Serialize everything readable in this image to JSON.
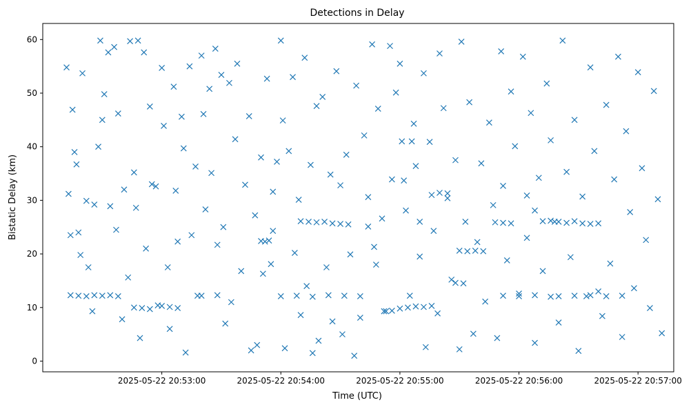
{
  "chart_data": {
    "type": "scatter",
    "title": "Detections in Delay",
    "xlabel": "Time (UTC)",
    "ylabel": "Bistatic Delay (km)",
    "x_unit": "datetime",
    "x_start": "2025-05-22 20:52:12",
    "x_end": "2025-05-22 20:57:12",
    "xlim": [
      "2025-05-22 20:52:00",
      "2025-05-22 20:57:18"
    ],
    "ylim": [
      -2,
      63
    ],
    "xticks": [
      "2025-05-22 20:53:00",
      "2025-05-22 20:54:00",
      "2025-05-22 20:55:00",
      "2025-05-22 20:56:00",
      "2025-05-22 20:57:00"
    ],
    "yticks": [
      0,
      10,
      20,
      30,
      40,
      50,
      60
    ],
    "marker": "x",
    "color": "#1f77b4",
    "grid": false,
    "legend": "none",
    "points": [
      [
        "20:52:12",
        54.8
      ],
      [
        "20:52:13",
        31.2
      ],
      [
        "20:52:14",
        23.5
      ],
      [
        "20:52:15",
        46.9
      ],
      [
        "20:52:16",
        39.0
      ],
      [
        "20:52:17",
        36.7
      ],
      [
        "20:52:18",
        24.0
      ],
      [
        "20:52:19",
        19.8
      ],
      [
        "20:52:20",
        53.7
      ],
      [
        "20:52:22",
        29.9
      ],
      [
        "20:52:23",
        17.5
      ],
      [
        "20:52:25",
        9.3
      ],
      [
        "20:52:26",
        29.2
      ],
      [
        "20:52:28",
        40.0
      ],
      [
        "20:52:29",
        59.8
      ],
      [
        "20:52:30",
        45.0
      ],
      [
        "20:52:31",
        49.8
      ],
      [
        "20:52:33",
        57.6
      ],
      [
        "20:52:34",
        28.9
      ],
      [
        "20:52:36",
        58.6
      ],
      [
        "20:52:37",
        24.5
      ],
      [
        "20:52:38",
        46.2
      ],
      [
        "20:52:40",
        7.8
      ],
      [
        "20:52:41",
        32.0
      ],
      [
        "20:52:43",
        15.6
      ],
      [
        "20:52:44",
        59.7
      ],
      [
        "20:52:46",
        35.2
      ],
      [
        "20:52:47",
        28.6
      ],
      [
        "20:52:48",
        59.8
      ],
      [
        "20:52:49",
        4.3
      ],
      [
        "20:52:51",
        57.6
      ],
      [
        "20:52:52",
        21.0
      ],
      [
        "20:52:54",
        47.5
      ],
      [
        "20:52:55",
        33.0
      ],
      [
        "20:52:57",
        32.6
      ],
      [
        "20:52:58",
        10.4
      ],
      [
        "20:53:00",
        54.7
      ],
      [
        "20:53:01",
        43.9
      ],
      [
        "20:53:03",
        17.5
      ],
      [
        "20:53:04",
        6.0
      ],
      [
        "20:53:06",
        51.2
      ],
      [
        "20:53:07",
        31.8
      ],
      [
        "20:53:08",
        22.3
      ],
      [
        "20:53:10",
        45.6
      ],
      [
        "20:53:11",
        39.7
      ],
      [
        "20:53:12",
        1.6
      ],
      [
        "20:53:14",
        55.0
      ],
      [
        "20:53:15",
        23.5
      ],
      [
        "20:53:17",
        36.3
      ],
      [
        "20:53:18",
        12.2
      ],
      [
        "20:53:20",
        57.0
      ],
      [
        "20:53:21",
        46.1
      ],
      [
        "20:53:22",
        28.3
      ],
      [
        "20:53:24",
        50.8
      ],
      [
        "20:53:25",
        35.1
      ],
      [
        "20:53:27",
        58.3
      ],
      [
        "20:53:28",
        21.7
      ],
      [
        "20:53:30",
        53.4
      ],
      [
        "20:53:31",
        25.0
      ],
      [
        "20:53:32",
        7.0
      ],
      [
        "20:53:34",
        51.9
      ],
      [
        "20:53:35",
        11.0
      ],
      [
        "20:53:37",
        41.4
      ],
      [
        "20:53:38",
        55.5
      ],
      [
        "20:53:40",
        16.8
      ],
      [
        "20:53:42",
        32.9
      ],
      [
        "20:53:44",
        45.7
      ],
      [
        "20:53:45",
        2.0
      ],
      [
        "20:53:47",
        27.2
      ],
      [
        "20:53:48",
        3.0
      ],
      [
        "20:53:50",
        38.0
      ],
      [
        "20:53:51",
        16.3
      ],
      [
        "20:53:53",
        52.7
      ],
      [
        "20:53:55",
        18.1
      ],
      [
        "20:53:56",
        31.6
      ],
      [
        "20:53:58",
        37.2
      ],
      [
        "20:54:00",
        59.8
      ],
      [
        "20:54:01",
        44.9
      ],
      [
        "20:54:02",
        2.4
      ],
      [
        "20:54:04",
        39.2
      ],
      [
        "20:54:06",
        53.0
      ],
      [
        "20:54:07",
        20.2
      ],
      [
        "20:54:09",
        30.1
      ],
      [
        "20:54:10",
        8.6
      ],
      [
        "20:54:12",
        56.6
      ],
      [
        "20:54:13",
        14.0
      ],
      [
        "20:54:15",
        36.6
      ],
      [
        "20:54:16",
        1.5
      ],
      [
        "20:54:18",
        47.6
      ],
      [
        "20:54:19",
        3.8
      ],
      [
        "20:54:21",
        49.3
      ],
      [
        "20:54:23",
        17.5
      ],
      [
        "20:54:25",
        34.8
      ],
      [
        "20:54:26",
        7.4
      ],
      [
        "20:54:28",
        54.1
      ],
      [
        "20:54:30",
        32.8
      ],
      [
        "20:54:31",
        5.0
      ],
      [
        "20:54:33",
        38.5
      ],
      [
        "20:54:35",
        19.9
      ],
      [
        "20:54:37",
        1.0
      ],
      [
        "20:54:38",
        51.4
      ],
      [
        "20:54:40",
        8.1
      ],
      [
        "20:54:42",
        42.1
      ],
      [
        "20:54:44",
        30.6
      ],
      [
        "20:54:46",
        59.1
      ],
      [
        "20:54:47",
        21.3
      ],
      [
        "20:54:49",
        47.1
      ],
      [
        "20:54:51",
        26.6
      ],
      [
        "20:54:53",
        9.3
      ],
      [
        "20:54:55",
        58.8
      ],
      [
        "20:54:56",
        33.9
      ],
      [
        "20:54:58",
        50.1
      ],
      [
        "20:55:00",
        55.5
      ],
      [
        "20:55:01",
        41.0
      ],
      [
        "20:55:03",
        28.1
      ],
      [
        "20:55:05",
        12.2
      ],
      [
        "20:55:07",
        44.3
      ],
      [
        "20:55:08",
        36.4
      ],
      [
        "20:55:10",
        19.5
      ],
      [
        "20:55:12",
        53.7
      ],
      [
        "20:55:13",
        2.6
      ],
      [
        "20:55:15",
        40.9
      ],
      [
        "20:55:17",
        24.3
      ],
      [
        "20:55:19",
        8.9
      ],
      [
        "20:55:20",
        57.4
      ],
      [
        "20:55:22",
        47.2
      ],
      [
        "20:55:24",
        31.3
      ],
      [
        "20:55:26",
        15.2
      ],
      [
        "20:55:28",
        37.5
      ],
      [
        "20:55:30",
        2.2
      ],
      [
        "20:55:31",
        59.6
      ],
      [
        "20:55:33",
        26.0
      ],
      [
        "20:55:35",
        48.3
      ],
      [
        "20:55:37",
        5.1
      ],
      [
        "20:55:39",
        22.2
      ],
      [
        "20:55:41",
        36.9
      ],
      [
        "20:55:43",
        11.1
      ],
      [
        "20:55:45",
        44.5
      ],
      [
        "20:55:47",
        29.1
      ],
      [
        "20:55:49",
        4.3
      ],
      [
        "20:55:51",
        57.8
      ],
      [
        "20:55:52",
        32.7
      ],
      [
        "20:55:54",
        18.8
      ],
      [
        "20:55:56",
        50.3
      ],
      [
        "20:55:58",
        40.1
      ],
      [
        "20:56:00",
        12.6
      ],
      [
        "20:56:02",
        56.8
      ],
      [
        "20:56:04",
        23.0
      ],
      [
        "20:56:06",
        46.3
      ],
      [
        "20:56:08",
        3.4
      ],
      [
        "20:56:10",
        34.2
      ],
      [
        "20:56:12",
        16.8
      ],
      [
        "20:56:14",
        51.8
      ],
      [
        "20:56:16",
        41.2
      ],
      [
        "20:56:18",
        26.0
      ],
      [
        "20:56:20",
        7.2
      ],
      [
        "20:56:22",
        59.8
      ],
      [
        "20:56:24",
        35.3
      ],
      [
        "20:56:26",
        19.4
      ],
      [
        "20:56:28",
        45.0
      ],
      [
        "20:56:30",
        1.9
      ],
      [
        "20:56:32",
        30.7
      ],
      [
        "20:56:34",
        12.1
      ],
      [
        "20:56:36",
        54.8
      ],
      [
        "20:56:38",
        39.2
      ],
      [
        "20:56:40",
        25.7
      ],
      [
        "20:56:42",
        8.4
      ],
      [
        "20:56:44",
        47.8
      ],
      [
        "20:56:46",
        18.2
      ],
      [
        "20:56:48",
        33.9
      ],
      [
        "20:56:50",
        56.8
      ],
      [
        "20:56:52",
        4.5
      ],
      [
        "20:56:54",
        42.9
      ],
      [
        "20:56:56",
        27.8
      ],
      [
        "20:56:58",
        13.6
      ],
      [
        "20:57:00",
        53.9
      ],
      [
        "20:57:02",
        36.0
      ],
      [
        "20:57:04",
        22.6
      ],
      [
        "20:57:06",
        9.9
      ],
      [
        "20:57:08",
        50.4
      ],
      [
        "20:57:10",
        30.2
      ],
      [
        "20:57:12",
        5.2
      ],
      [
        "20:52:14",
        12.3
      ],
      [
        "20:52:18",
        12.2
      ],
      [
        "20:52:22",
        12.1
      ],
      [
        "20:52:26",
        12.3
      ],
      [
        "20:52:30",
        12.2
      ],
      [
        "20:52:34",
        12.3
      ],
      [
        "20:52:38",
        12.1
      ],
      [
        "20:53:20",
        12.2
      ],
      [
        "20:53:28",
        12.3
      ],
      [
        "20:54:00",
        12.1
      ],
      [
        "20:54:08",
        12.2
      ],
      [
        "20:54:16",
        12.0
      ],
      [
        "20:54:24",
        12.3
      ],
      [
        "20:54:32",
        12.2
      ],
      [
        "20:54:40",
        12.1
      ],
      [
        "20:55:52",
        12.2
      ],
      [
        "20:56:00",
        12.1
      ],
      [
        "20:56:08",
        12.3
      ],
      [
        "20:56:16",
        12.0
      ],
      [
        "20:56:20",
        12.1
      ],
      [
        "20:56:28",
        12.2
      ],
      [
        "20:56:36",
        12.3
      ],
      [
        "20:56:44",
        12.1
      ],
      [
        "20:56:52",
        12.2
      ],
      [
        "20:52:46",
        10.0
      ],
      [
        "20:52:50",
        9.9
      ],
      [
        "20:52:54",
        9.7
      ],
      [
        "20:53:00",
        10.3
      ],
      [
        "20:53:04",
        10.1
      ],
      [
        "20:53:08",
        9.9
      ],
      [
        "20:55:00",
        9.8
      ],
      [
        "20:55:04",
        10.0
      ],
      [
        "20:55:08",
        10.2
      ],
      [
        "20:55:12",
        10.1
      ],
      [
        "20:55:16",
        10.3
      ],
      [
        "20:54:52",
        9.3
      ],
      [
        "20:54:56",
        9.4
      ],
      [
        "20:53:50",
        22.4
      ],
      [
        "20:53:52",
        22.3
      ],
      [
        "20:53:54",
        22.5
      ],
      [
        "20:53:56",
        24.3
      ],
      [
        "20:54:10",
        26.1
      ],
      [
        "20:54:14",
        26.0
      ],
      [
        "20:54:18",
        25.9
      ],
      [
        "20:54:22",
        26.0
      ],
      [
        "20:54:26",
        25.7
      ],
      [
        "20:54:30",
        25.6
      ],
      [
        "20:54:34",
        25.5
      ],
      [
        "20:56:12",
        26.1
      ],
      [
        "20:56:16",
        26.2
      ],
      [
        "20:56:20",
        26.0
      ],
      [
        "20:56:24",
        25.8
      ],
      [
        "20:56:28",
        26.1
      ],
      [
        "20:56:32",
        25.7
      ],
      [
        "20:56:36",
        25.6
      ],
      [
        "20:55:30",
        20.6
      ],
      [
        "20:55:34",
        20.5
      ],
      [
        "20:55:38",
        20.6
      ],
      [
        "20:55:42",
        20.5
      ],
      [
        "20:55:16",
        31.0
      ],
      [
        "20:55:20",
        31.4
      ],
      [
        "20:55:24",
        30.4
      ],
      [
        "20:55:48",
        25.9
      ],
      [
        "20:55:52",
        25.8
      ],
      [
        "20:55:56",
        25.7
      ],
      [
        "20:54:48",
        18.0
      ],
      [
        "20:54:44",
        25.1
      ],
      [
        "20:55:28",
        14.6
      ],
      [
        "20:55:32",
        14.5
      ],
      [
        "20:56:40",
        13.0
      ],
      [
        "20:55:06",
        41.0
      ],
      [
        "20:55:02",
        33.7
      ],
      [
        "20:55:10",
        26.0
      ],
      [
        "20:56:04",
        30.9
      ],
      [
        "20:56:08",
        28.1
      ]
    ]
  }
}
